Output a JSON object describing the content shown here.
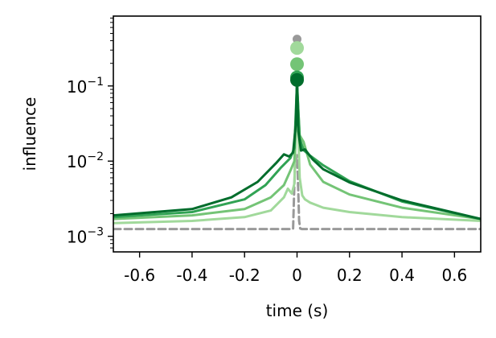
{
  "chart_data": {
    "type": "line",
    "title": "",
    "xlabel": "time (s)",
    "ylabel": "influence",
    "xlim": [
      -0.7,
      0.7
    ],
    "ylim": [
      0.00062,
      0.85
    ],
    "yscale": "log",
    "grid": false,
    "legend": "none",
    "x_ticks": [
      {
        "value": -0.6,
        "label": "-0.6"
      },
      {
        "value": -0.4,
        "label": "-0.4"
      },
      {
        "value": -0.2,
        "label": "-0.2"
      },
      {
        "value": 0.0,
        "label": "0"
      },
      {
        "value": 0.2,
        "label": "0.2"
      },
      {
        "value": 0.4,
        "label": "0.4"
      },
      {
        "value": 0.6,
        "label": "0.6"
      }
    ],
    "y_ticks": [
      {
        "value": 0.001,
        "base": "10",
        "exp": "−3"
      },
      {
        "value": 0.01,
        "base": "10",
        "exp": "−2"
      },
      {
        "value": 0.1,
        "base": "10",
        "exp": "−1"
      }
    ],
    "series": [
      {
        "color": "#999999",
        "dashed": true,
        "x": [
          -0.7,
          -0.02,
          -0.015,
          -0.012,
          -0.008,
          0.0,
          0.005,
          0.008,
          0.012,
          0.018,
          0.7
        ],
        "y": [
          0.00125,
          0.00125,
          0.00126,
          0.003,
          0.009,
          0.012,
          0.0038,
          0.0016,
          0.00127,
          0.00125,
          0.00125
        ],
        "peak": {
          "x": 0.0,
          "y": 0.42
        }
      },
      {
        "color": "#a1d99b",
        "dashed": false,
        "x": [
          -0.7,
          -0.4,
          -0.2,
          -0.1,
          -0.05,
          -0.035,
          -0.02,
          -0.01,
          0.0,
          0.01,
          0.02,
          0.03,
          0.05,
          0.1,
          0.2,
          0.4,
          0.7
        ],
        "y": [
          0.0015,
          0.0016,
          0.0018,
          0.0022,
          0.0033,
          0.0043,
          0.0037,
          0.005,
          0.09,
          0.006,
          0.0035,
          0.0031,
          0.0028,
          0.0024,
          0.0021,
          0.0018,
          0.0016
        ],
        "peak": {
          "x": 0.0,
          "y": 0.32
        }
      },
      {
        "color": "#74c476",
        "dashed": false,
        "x": [
          -0.7,
          -0.4,
          -0.2,
          -0.1,
          -0.05,
          -0.025,
          -0.01,
          0.0,
          0.01,
          0.025,
          0.05,
          0.1,
          0.2,
          0.4,
          0.7
        ],
        "y": [
          0.0017,
          0.0019,
          0.0023,
          0.0033,
          0.0048,
          0.0075,
          0.01,
          0.1,
          0.022,
          0.018,
          0.009,
          0.0053,
          0.0036,
          0.0024,
          0.0017
        ],
        "peak": {
          "x": 0.0,
          "y": 0.195
        }
      },
      {
        "color": "#31a354",
        "dashed": false,
        "x": [
          -0.7,
          -0.4,
          -0.2,
          -0.12,
          -0.06,
          -0.025,
          -0.01,
          0.0,
          0.01,
          0.025,
          0.05,
          0.1,
          0.2,
          0.4,
          0.7
        ],
        "y": [
          0.0018,
          0.0021,
          0.0031,
          0.0048,
          0.0083,
          0.011,
          0.015,
          0.11,
          0.02,
          0.014,
          0.0118,
          0.0088,
          0.0054,
          0.0029,
          0.0017
        ],
        "peak": {
          "x": 0.0,
          "y": 0.13
        }
      },
      {
        "color": "#006d2c",
        "dashed": false,
        "x": [
          -0.7,
          -0.4,
          -0.25,
          -0.15,
          -0.08,
          -0.05,
          -0.03,
          -0.015,
          -0.005,
          0.0,
          0.005,
          0.015,
          0.03,
          0.06,
          0.1,
          0.2,
          0.4,
          0.7
        ],
        "y": [
          0.0019,
          0.0023,
          0.0033,
          0.0053,
          0.0094,
          0.0123,
          0.0115,
          0.013,
          0.03,
          0.125,
          0.025,
          0.0138,
          0.0143,
          0.0105,
          0.0078,
          0.0052,
          0.003,
          0.0017
        ],
        "peak": {
          "x": 0.0,
          "y": 0.12
        }
      }
    ]
  }
}
